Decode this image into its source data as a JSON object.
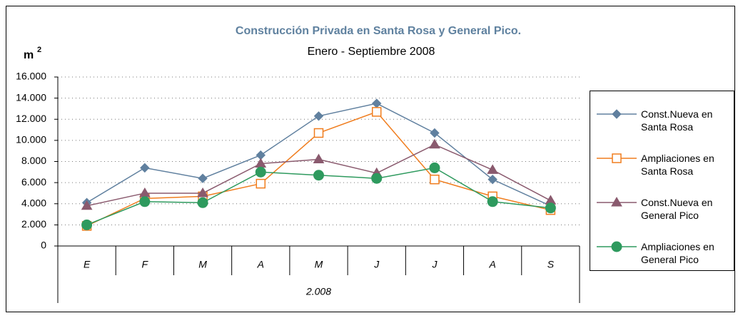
{
  "chart_data": {
    "type": "line",
    "title": "Construcción Privada en Santa Rosa y General Pico.",
    "subtitle": "Enero - Septiembre 2008",
    "y_label": "m",
    "y_label_superscript": "2",
    "categories": [
      "E",
      "F",
      "M",
      "A",
      "M",
      "J",
      "J",
      "A",
      "S"
    ],
    "category_group": "2.008",
    "series": [
      {
        "name": "Const.Nueva en Santa Rosa",
        "color": "#60809f",
        "marker": "diamond",
        "values": [
          4100,
          7400,
          6400,
          8600,
          12300,
          13500,
          10700,
          6300,
          3800
        ]
      },
      {
        "name": "Ampliaciones en Santa Rosa",
        "color": "#f07d1e",
        "marker": "square",
        "values": [
          1900,
          4500,
          4700,
          5900,
          10700,
          12700,
          6300,
          4700,
          3400
        ]
      },
      {
        "name": "Const.Nueva en General Pico",
        "color": "#8a5a6e",
        "marker": "triangle",
        "values": [
          3800,
          5000,
          5000,
          7800,
          8200,
          6900,
          9600,
          7200,
          4300
        ]
      },
      {
        "name": "Ampliaciones en General Pico",
        "color": "#2e9a5e",
        "marker": "circle",
        "values": [
          2000,
          4200,
          4100,
          7000,
          6700,
          6400,
          7400,
          4200,
          3600
        ]
      }
    ],
    "ylim": [
      0,
      16000
    ],
    "yticks": [
      0,
      {
        "value": 2000,
        "label": "2.000"
      },
      {
        "value": 4000,
        "label": "4.000"
      },
      {
        "value": 6000,
        "label": "6.000"
      },
      {
        "value": 8000,
        "label": "8.000"
      },
      {
        "value": 10000,
        "label": "10.000"
      },
      {
        "value": 12000,
        "label": "12.000"
      },
      {
        "value": 14000,
        "label": "14.000"
      },
      {
        "value": 16000,
        "label": "16.000"
      }
    ],
    "grid": true,
    "legend": "right"
  }
}
